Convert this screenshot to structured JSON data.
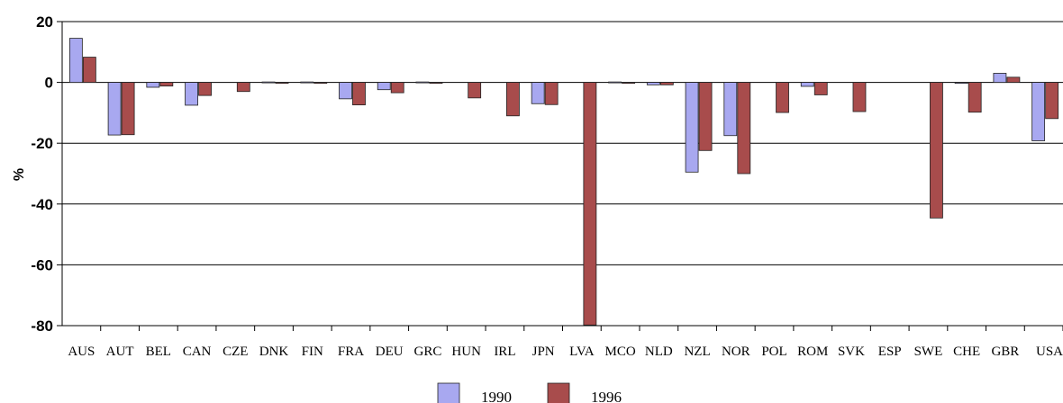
{
  "chart_data": {
    "type": "bar",
    "ylabel": "%",
    "xlabel": "",
    "ylim": [
      -80,
      20
    ],
    "yticks": [
      20,
      0,
      -20,
      -40,
      -60,
      -80
    ],
    "grid": true,
    "legend_position": "bottom-center",
    "categories": [
      "AUS",
      "AUT",
      "BEL",
      "CAN",
      "CZE",
      "DNK",
      "FIN",
      "FRA",
      "DEU",
      "GRC",
      "HUN",
      "IRL",
      "JPN",
      "LVA",
      "MCO",
      "NLD",
      "NZL",
      "NOR",
      "POL",
      "ROM",
      "SVK",
      "ESP",
      "SWE",
      "CHE",
      "GBR",
      "USA"
    ],
    "series": [
      {
        "name": "1990",
        "color": "#a8a8f0",
        "values": [
          14.5,
          -17.3,
          -1.6,
          -7.5,
          null,
          0,
          0,
          -5.4,
          -2.4,
          0,
          null,
          null,
          -7,
          null,
          0,
          -0.8,
          -29.5,
          -17.5,
          null,
          -1.3,
          null,
          null,
          null,
          -0.3,
          3,
          -19.2
        ]
      },
      {
        "name": "1996",
        "color": "#a84c4c",
        "values": [
          8.3,
          -17.2,
          -1.2,
          -4.3,
          -3,
          -0.3,
          -0.3,
          -7.4,
          -3.4,
          -0.3,
          -5.1,
          -11,
          -7.3,
          -79.8,
          -0.3,
          -0.8,
          -22.4,
          -30,
          -9.9,
          -4.1,
          -9.6,
          null,
          -44.6,
          -9.8,
          1.7,
          -11.9
        ]
      }
    ]
  }
}
